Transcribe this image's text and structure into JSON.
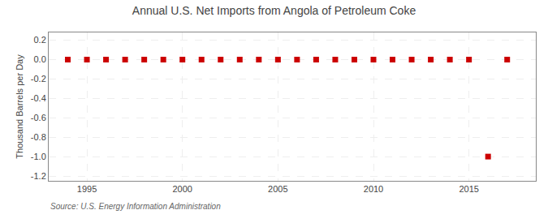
{
  "chart_data": {
    "type": "scatter",
    "title": "Annual U.S. Net Imports from Angola of Petroleum Coke",
    "ylabel": "Thousand Barrels per Day",
    "annotation": "Source: U.S. Energy Information Administration",
    "x": [
      1994,
      1995,
      1996,
      1997,
      1998,
      1999,
      2000,
      2001,
      2002,
      2003,
      2004,
      2005,
      2006,
      2007,
      2008,
      2009,
      2010,
      2011,
      2012,
      2013,
      2014,
      2015,
      2016,
      2017
    ],
    "values": [
      0,
      0,
      0,
      0,
      0,
      0,
      0,
      0,
      0,
      0,
      0,
      0,
      0,
      0,
      0,
      0,
      0,
      0,
      0,
      0,
      0,
      0,
      -1.0,
      0
    ],
    "color": "#cc0000",
    "marker": "square",
    "xlim": [
      1993,
      2018.5
    ],
    "ylim": [
      -1.25,
      0.28
    ],
    "xticks": [
      1995,
      2000,
      2005,
      2010,
      2015
    ],
    "yticks": [
      0.2,
      {
        "value": 0,
        "label": "0.0"
      },
      -0.2,
      -0.4,
      -0.6,
      -0.8,
      {
        "value": -1.0,
        "label": "-1.0"
      },
      -1.2
    ],
    "grid": true
  }
}
